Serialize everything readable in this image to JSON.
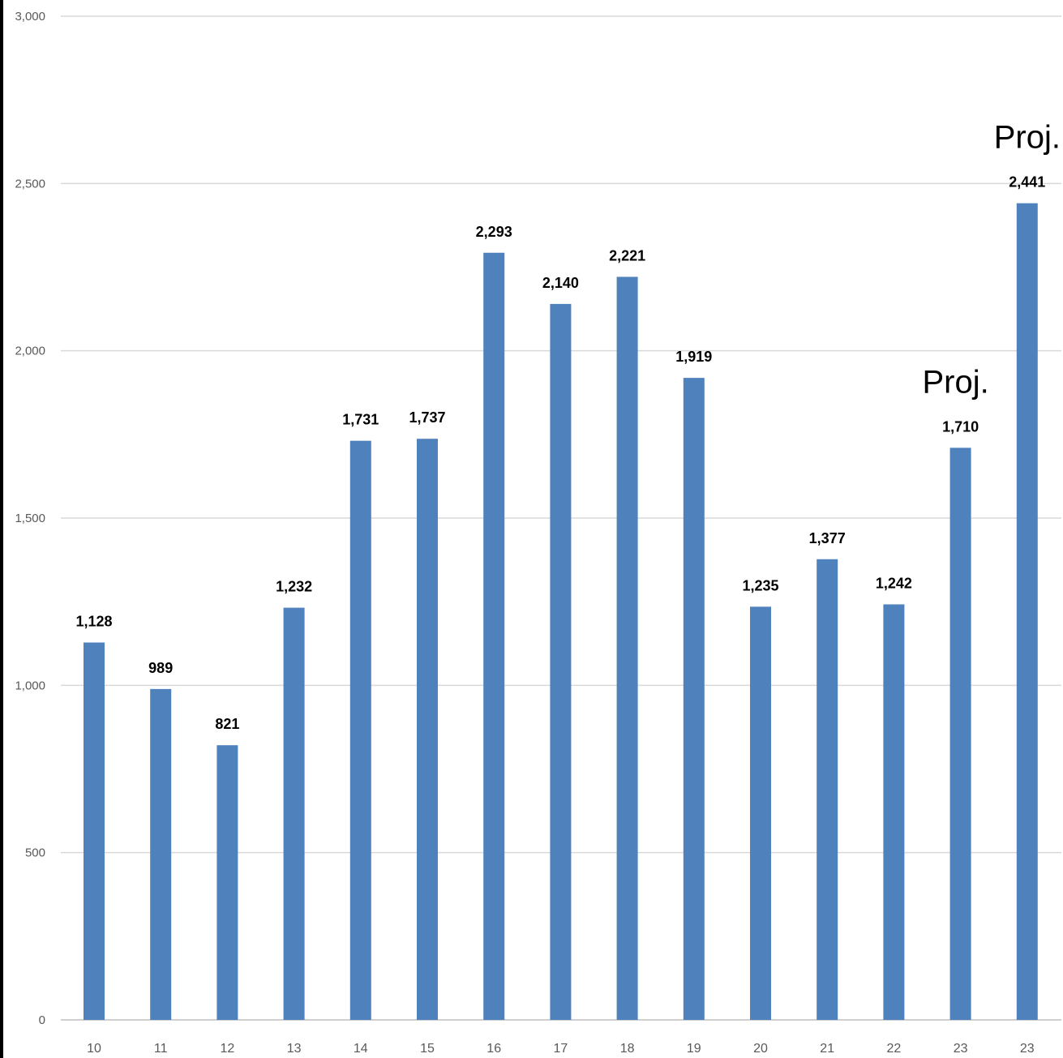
{
  "chart_data": {
    "type": "bar",
    "title": "",
    "xlabel": "",
    "ylabel": "",
    "ylim": [
      0,
      3000
    ],
    "yticks": [
      {
        "value": 0,
        "label": "0"
      },
      {
        "value": 500,
        "label": "500"
      },
      {
        "value": 1000,
        "label": "1,000"
      },
      {
        "value": 1500,
        "label": "1,500"
      },
      {
        "value": 2000,
        "label": "2,000"
      },
      {
        "value": 2500,
        "label": "2,500"
      },
      {
        "value": 3000,
        "label": "3,000"
      }
    ],
    "grid": true,
    "bar_color": "#4f81bd",
    "categories": [
      "10",
      "11",
      "12",
      "13",
      "14",
      "15",
      "16",
      "17",
      "18",
      "19",
      "20",
      "21",
      "22",
      "23",
      "23"
    ],
    "values": [
      1128,
      989,
      821,
      1232,
      1731,
      1737,
      2293,
      2140,
      2221,
      1919,
      1235,
      1377,
      1242,
      1710,
      2441
    ],
    "value_labels": [
      "1,128",
      "989",
      "821",
      "1,232",
      "1,731",
      "1,737",
      "2,293",
      "2,140",
      "2,221",
      "1,919",
      "1,235",
      "1,377",
      "1,242",
      "1,710",
      "2,441"
    ],
    "annotations": [
      {
        "bar_index": 13,
        "text": "Proj."
      },
      {
        "bar_index": 14,
        "text": "Proj."
      }
    ]
  }
}
